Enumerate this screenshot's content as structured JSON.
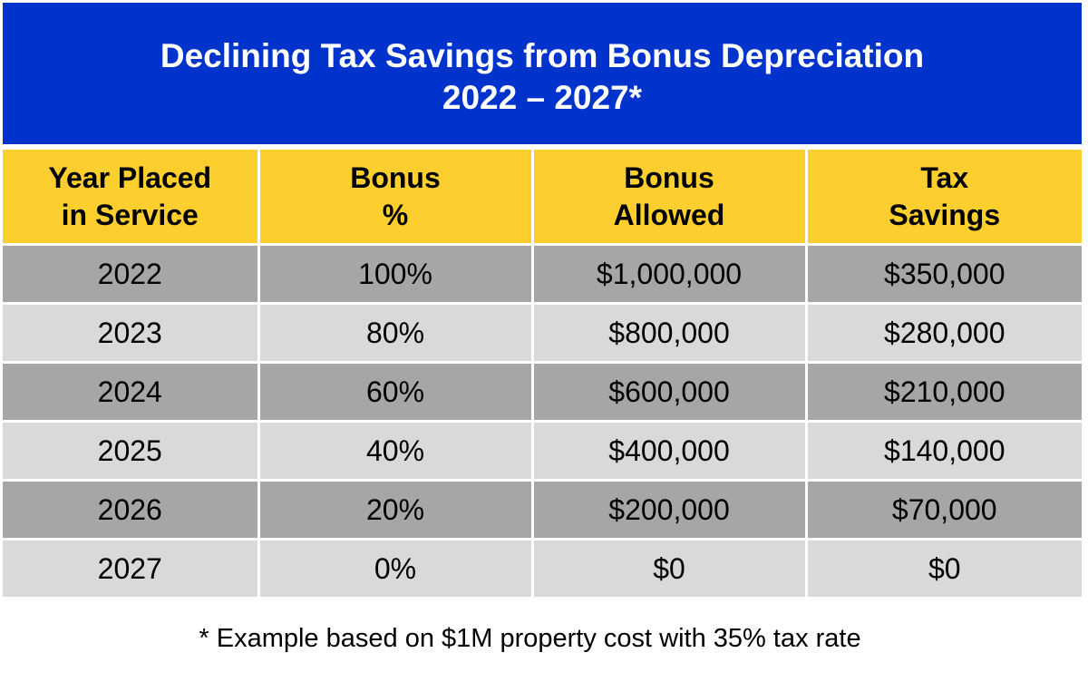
{
  "title": {
    "line1": "Declining Tax Savings from Bonus Depreciation",
    "line2": "2022 – 2027*"
  },
  "table": {
    "headers": [
      {
        "line1": "Year Placed",
        "line2": "in Service"
      },
      {
        "line1": "Bonus",
        "line2": "%"
      },
      {
        "line1": "Bonus",
        "line2": "Allowed"
      },
      {
        "line1": "Tax",
        "line2": "Savings"
      }
    ],
    "rows": [
      [
        "2022",
        "100%",
        "$1,000,000",
        "$350,000"
      ],
      [
        "2023",
        "80%",
        "$800,000",
        "$280,000"
      ],
      [
        "2024",
        "60%",
        "$600,000",
        "$210,000"
      ],
      [
        "2025",
        "40%",
        "$400,000",
        "$140,000"
      ],
      [
        "2026",
        "20%",
        "$200,000",
        "$70,000"
      ],
      [
        "2027",
        "0%",
        "$0",
        "$0"
      ]
    ]
  },
  "footnote": "* Example based on $1M property cost with 35% tax rate",
  "colors": {
    "banner": "#0033cc",
    "header": "#fccf2e",
    "row_dark": "#a6a6a6",
    "row_light": "#d9d9d9"
  }
}
